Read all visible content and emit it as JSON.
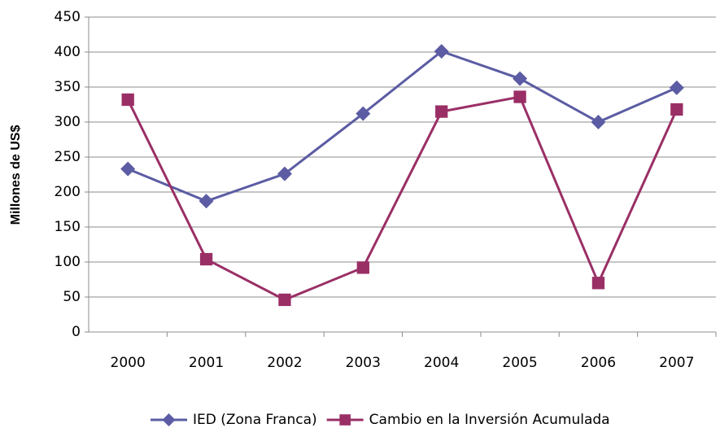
{
  "chart_data": {
    "type": "line",
    "y_label": "Millones de US$",
    "categories": [
      "2000",
      "2001",
      "2002",
      "2003",
      "2004",
      "2005",
      "2006",
      "2007"
    ],
    "series": [
      {
        "name": "IED (Zona Franca)",
        "color": "#5b5ca3",
        "marker": "diamond",
        "values": [
          233,
          187,
          226,
          312,
          401,
          362,
          300,
          349
        ]
      },
      {
        "name": "Cambio en la Inversión Acumulada",
        "color": "#9a2f66",
        "marker": "square",
        "values": [
          332,
          104,
          46,
          92,
          315,
          336,
          70,
          318
        ]
      }
    ],
    "ylim": [
      0,
      450
    ],
    "yticks": [
      0,
      50,
      100,
      150,
      200,
      250,
      300,
      350,
      400,
      450
    ],
    "grid": true,
    "legend": "bottom"
  }
}
